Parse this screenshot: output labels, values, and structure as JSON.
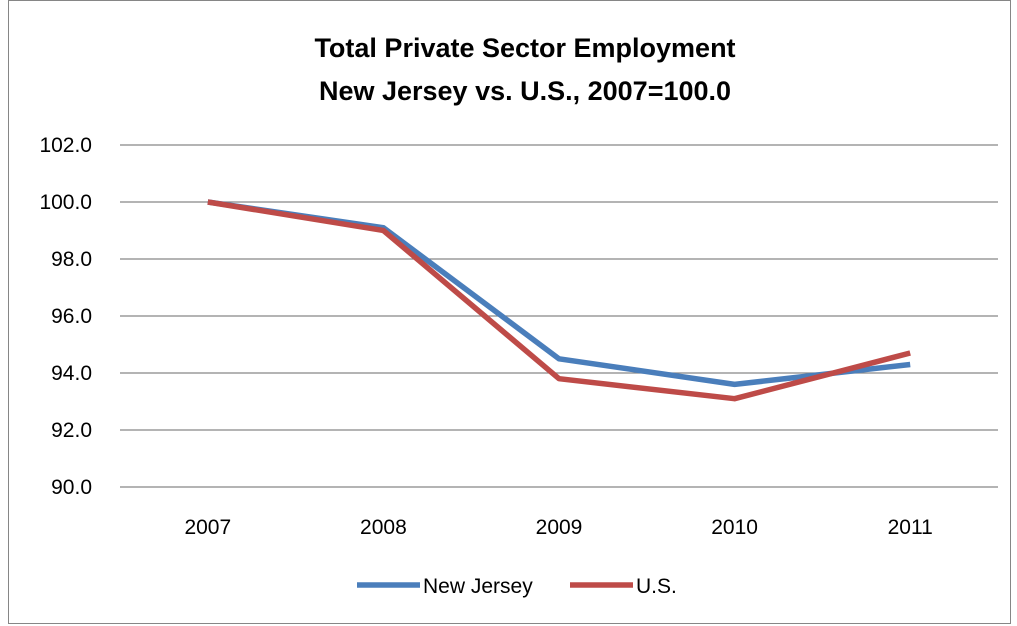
{
  "chart_data": {
    "type": "line",
    "title_lines": [
      "Total Private Sector Employment",
      "New Jersey vs. U.S., 2007=100.0"
    ],
    "categories": [
      "2007",
      "2008",
      "2009",
      "2010",
      "2011"
    ],
    "y_ticks": [
      "90.0",
      "92.0",
      "94.0",
      "96.0",
      "98.0",
      "100.0",
      "102.0"
    ],
    "ylim": [
      90,
      102
    ],
    "grid": true,
    "legend_position": "bottom",
    "series": [
      {
        "name": "New Jersey",
        "color": "#4a7ebb",
        "values": [
          100.0,
          99.1,
          94.5,
          93.6,
          94.3
        ]
      },
      {
        "name": "U.S.",
        "color": "#be4b48",
        "values": [
          100.0,
          99.0,
          93.8,
          93.1,
          94.7
        ]
      }
    ]
  }
}
